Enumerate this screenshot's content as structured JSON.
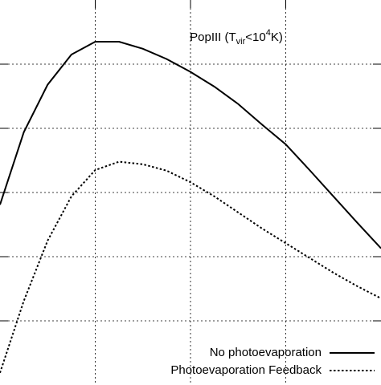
{
  "chart_data": {
    "type": "line",
    "annotation": {
      "parts": [
        "PopIII (T",
        "vir",
        "<10",
        "4",
        "K)"
      ]
    },
    "x": [
      0,
      0.25,
      0.5,
      0.75,
      1,
      1.25,
      1.5,
      1.75,
      2,
      2.25,
      2.5,
      2.75,
      3,
      3.25,
      3.5,
      3.75,
      4
    ],
    "series": [
      {
        "name": "No photoevaporation",
        "color": "#000000",
        "dash": "solid",
        "values": [
          2.81,
          3.94,
          4.68,
          5.15,
          5.35,
          5.35,
          5.24,
          5.08,
          4.88,
          4.65,
          4.38,
          4.06,
          3.75,
          3.35,
          2.94,
          2.53,
          2.13
        ]
      },
      {
        "name": "Photoevaporation Feedback",
        "color": "#000000",
        "dash": "dotted",
        "values": [
          0.19,
          1.31,
          2.25,
          2.94,
          3.35,
          3.48,
          3.44,
          3.34,
          3.16,
          2.94,
          2.69,
          2.44,
          2.21,
          1.98,
          1.75,
          1.54,
          1.35
        ]
      }
    ],
    "xlim": [
      0,
      4
    ],
    "ylim": [
      0,
      6
    ],
    "xticks": [
      1,
      2,
      3
    ],
    "yticks": [
      1,
      2,
      3,
      4,
      5
    ],
    "grid": true,
    "legend": "lower right"
  }
}
